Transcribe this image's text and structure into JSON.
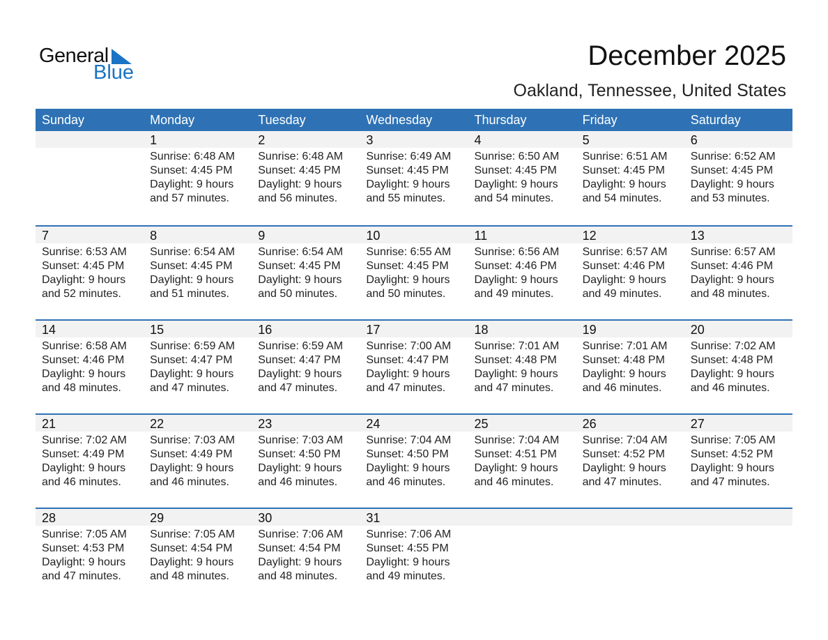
{
  "logo": {
    "text_top": "General",
    "text_bottom": "Blue",
    "color": "#1a73c4"
  },
  "title": "December 2025",
  "subtitle": "Oakland, Tennessee, United States",
  "colors": {
    "header": "#2e72b5",
    "band": "#f2f2f2"
  },
  "days": [
    "Sunday",
    "Monday",
    "Tuesday",
    "Wednesday",
    "Thursday",
    "Friday",
    "Saturday"
  ],
  "weeks": [
    [
      null,
      {
        "day": "1",
        "sunrise": "Sunrise: 6:48 AM",
        "sunset": "Sunset: 4:45 PM",
        "daylight": "Daylight: 9 hours",
        "minutes": "and 57 minutes."
      },
      {
        "day": "2",
        "sunrise": "Sunrise: 6:48 AM",
        "sunset": "Sunset: 4:45 PM",
        "daylight": "Daylight: 9 hours",
        "minutes": "and 56 minutes."
      },
      {
        "day": "3",
        "sunrise": "Sunrise: 6:49 AM",
        "sunset": "Sunset: 4:45 PM",
        "daylight": "Daylight: 9 hours",
        "minutes": "and 55 minutes."
      },
      {
        "day": "4",
        "sunrise": "Sunrise: 6:50 AM",
        "sunset": "Sunset: 4:45 PM",
        "daylight": "Daylight: 9 hours",
        "minutes": "and 54 minutes."
      },
      {
        "day": "5",
        "sunrise": "Sunrise: 6:51 AM",
        "sunset": "Sunset: 4:45 PM",
        "daylight": "Daylight: 9 hours",
        "minutes": "and 54 minutes."
      },
      {
        "day": "6",
        "sunrise": "Sunrise: 6:52 AM",
        "sunset": "Sunset: 4:45 PM",
        "daylight": "Daylight: 9 hours",
        "minutes": "and 53 minutes."
      }
    ],
    [
      {
        "day": "7",
        "sunrise": "Sunrise: 6:53 AM",
        "sunset": "Sunset: 4:45 PM",
        "daylight": "Daylight: 9 hours",
        "minutes": "and 52 minutes."
      },
      {
        "day": "8",
        "sunrise": "Sunrise: 6:54 AM",
        "sunset": "Sunset: 4:45 PM",
        "daylight": "Daylight: 9 hours",
        "minutes": "and 51 minutes."
      },
      {
        "day": "9",
        "sunrise": "Sunrise: 6:54 AM",
        "sunset": "Sunset: 4:45 PM",
        "daylight": "Daylight: 9 hours",
        "minutes": "and 50 minutes."
      },
      {
        "day": "10",
        "sunrise": "Sunrise: 6:55 AM",
        "sunset": "Sunset: 4:45 PM",
        "daylight": "Daylight: 9 hours",
        "minutes": "and 50 minutes."
      },
      {
        "day": "11",
        "sunrise": "Sunrise: 6:56 AM",
        "sunset": "Sunset: 4:46 PM",
        "daylight": "Daylight: 9 hours",
        "minutes": "and 49 minutes."
      },
      {
        "day": "12",
        "sunrise": "Sunrise: 6:57 AM",
        "sunset": "Sunset: 4:46 PM",
        "daylight": "Daylight: 9 hours",
        "minutes": "and 49 minutes."
      },
      {
        "day": "13",
        "sunrise": "Sunrise: 6:57 AM",
        "sunset": "Sunset: 4:46 PM",
        "daylight": "Daylight: 9 hours",
        "minutes": "and 48 minutes."
      }
    ],
    [
      {
        "day": "14",
        "sunrise": "Sunrise: 6:58 AM",
        "sunset": "Sunset: 4:46 PM",
        "daylight": "Daylight: 9 hours",
        "minutes": "and 48 minutes."
      },
      {
        "day": "15",
        "sunrise": "Sunrise: 6:59 AM",
        "sunset": "Sunset: 4:47 PM",
        "daylight": "Daylight: 9 hours",
        "minutes": "and 47 minutes."
      },
      {
        "day": "16",
        "sunrise": "Sunrise: 6:59 AM",
        "sunset": "Sunset: 4:47 PM",
        "daylight": "Daylight: 9 hours",
        "minutes": "and 47 minutes."
      },
      {
        "day": "17",
        "sunrise": "Sunrise: 7:00 AM",
        "sunset": "Sunset: 4:47 PM",
        "daylight": "Daylight: 9 hours",
        "minutes": "and 47 minutes."
      },
      {
        "day": "18",
        "sunrise": "Sunrise: 7:01 AM",
        "sunset": "Sunset: 4:48 PM",
        "daylight": "Daylight: 9 hours",
        "minutes": "and 47 minutes."
      },
      {
        "day": "19",
        "sunrise": "Sunrise: 7:01 AM",
        "sunset": "Sunset: 4:48 PM",
        "daylight": "Daylight: 9 hours",
        "minutes": "and 46 minutes."
      },
      {
        "day": "20",
        "sunrise": "Sunrise: 7:02 AM",
        "sunset": "Sunset: 4:48 PM",
        "daylight": "Daylight: 9 hours",
        "minutes": "and 46 minutes."
      }
    ],
    [
      {
        "day": "21",
        "sunrise": "Sunrise: 7:02 AM",
        "sunset": "Sunset: 4:49 PM",
        "daylight": "Daylight: 9 hours",
        "minutes": "and 46 minutes."
      },
      {
        "day": "22",
        "sunrise": "Sunrise: 7:03 AM",
        "sunset": "Sunset: 4:49 PM",
        "daylight": "Daylight: 9 hours",
        "minutes": "and 46 minutes."
      },
      {
        "day": "23",
        "sunrise": "Sunrise: 7:03 AM",
        "sunset": "Sunset: 4:50 PM",
        "daylight": "Daylight: 9 hours",
        "minutes": "and 46 minutes."
      },
      {
        "day": "24",
        "sunrise": "Sunrise: 7:04 AM",
        "sunset": "Sunset: 4:50 PM",
        "daylight": "Daylight: 9 hours",
        "minutes": "and 46 minutes."
      },
      {
        "day": "25",
        "sunrise": "Sunrise: 7:04 AM",
        "sunset": "Sunset: 4:51 PM",
        "daylight": "Daylight: 9 hours",
        "minutes": "and 46 minutes."
      },
      {
        "day": "26",
        "sunrise": "Sunrise: 7:04 AM",
        "sunset": "Sunset: 4:52 PM",
        "daylight": "Daylight: 9 hours",
        "minutes": "and 47 minutes."
      },
      {
        "day": "27",
        "sunrise": "Sunrise: 7:05 AM",
        "sunset": "Sunset: 4:52 PM",
        "daylight": "Daylight: 9 hours",
        "minutes": "and 47 minutes."
      }
    ],
    [
      {
        "day": "28",
        "sunrise": "Sunrise: 7:05 AM",
        "sunset": "Sunset: 4:53 PM",
        "daylight": "Daylight: 9 hours",
        "minutes": "and 47 minutes."
      },
      {
        "day": "29",
        "sunrise": "Sunrise: 7:05 AM",
        "sunset": "Sunset: 4:54 PM",
        "daylight": "Daylight: 9 hours",
        "minutes": "and 48 minutes."
      },
      {
        "day": "30",
        "sunrise": "Sunrise: 7:06 AM",
        "sunset": "Sunset: 4:54 PM",
        "daylight": "Daylight: 9 hours",
        "minutes": "and 48 minutes."
      },
      {
        "day": "31",
        "sunrise": "Sunrise: 7:06 AM",
        "sunset": "Sunset: 4:55 PM",
        "daylight": "Daylight: 9 hours",
        "minutes": "and 49 minutes."
      },
      null,
      null,
      null
    ]
  ]
}
